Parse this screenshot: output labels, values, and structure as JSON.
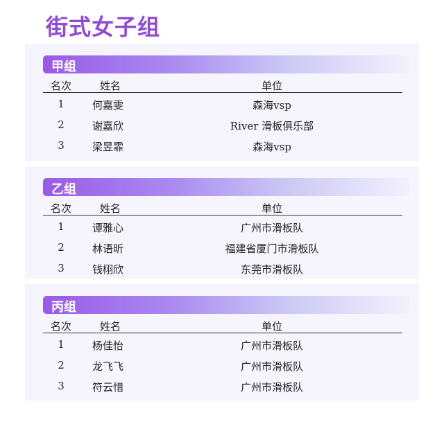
{
  "title": "街式女子组",
  "columns": {
    "rank": "名次",
    "name": "姓名",
    "unit": "单位"
  },
  "groups": [
    {
      "name": "甲组",
      "rows": [
        {
          "rank": "1",
          "name": "何嘉雯",
          "unit": "森海vsp"
        },
        {
          "rank": "2",
          "name": "谢嘉欣",
          "unit": "River 滑板俱乐部"
        },
        {
          "rank": "3",
          "name": "梁昱霏",
          "unit": "森海vsp"
        }
      ]
    },
    {
      "name": "乙组",
      "rows": [
        {
          "rank": "1",
          "name": "谭雅心",
          "unit": "广州市滑板队"
        },
        {
          "rank": "2",
          "name": "林语昕",
          "unit": "福建省厦门市滑板队"
        },
        {
          "rank": "3",
          "name": "钱栩欣",
          "unit": "东莞市滑板队"
        }
      ]
    },
    {
      "name": "丙组",
      "rows": [
        {
          "rank": "1",
          "name": "杨佳怡",
          "unit": "广州市滑板队"
        },
        {
          "rank": "2",
          "name": "龙飞飞",
          "unit": "广州市滑板队"
        },
        {
          "rank": "3",
          "name": "符云惜",
          "unit": "广州市滑板队"
        }
      ]
    }
  ]
}
